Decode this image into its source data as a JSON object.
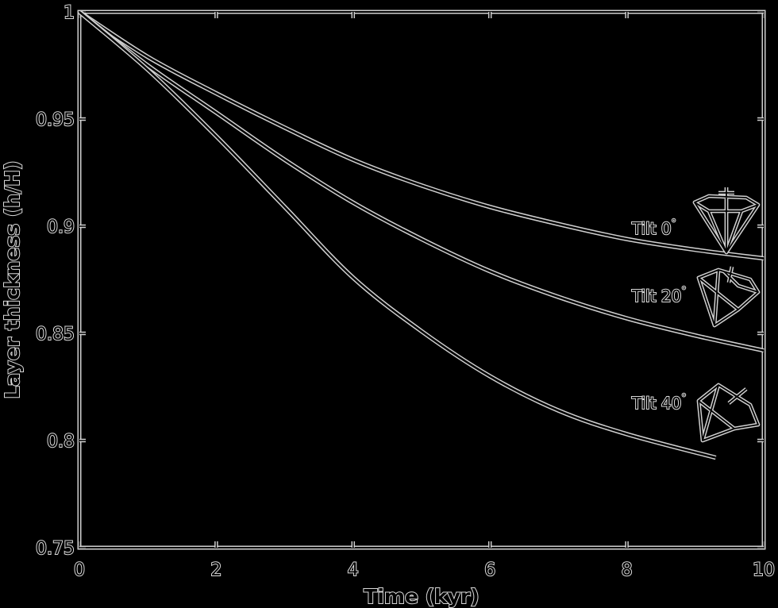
{
  "chart_data": {
    "type": "line",
    "title": "",
    "xlabel": "Time (kyr)",
    "ylabel": "Layer thickness (h/H)",
    "xlim": [
      0,
      10
    ],
    "ylim": [
      0.75,
      1.0
    ],
    "xticks": [
      0,
      2,
      4,
      6,
      8,
      10
    ],
    "xtick_labels": [
      "0",
      "2",
      "4",
      "6",
      "8",
      "10"
    ],
    "yticks": [
      0.75,
      0.8,
      0.85,
      0.9,
      0.95,
      1.0
    ],
    "ytick_labels": [
      "0.75",
      "0.8",
      "0.85",
      "0.9",
      "0.95",
      "1"
    ],
    "grid": false,
    "series": [
      {
        "name": "Tilt 0°",
        "label_text": "Tilt 0",
        "label_deg": "°",
        "x": [
          0,
          1,
          2,
          3,
          4,
          5,
          6,
          7,
          8,
          9,
          10
        ],
        "y": [
          1.0,
          0.979,
          0.962,
          0.946,
          0.931,
          0.919,
          0.909,
          0.901,
          0.894,
          0.889,
          0.885
        ]
      },
      {
        "name": "Tilt 20°",
        "label_text": "Tilt 20",
        "label_deg": "°",
        "x": [
          0,
          1,
          2,
          3,
          4,
          5,
          6,
          7,
          8,
          9,
          10
        ],
        "y": [
          1.0,
          0.975,
          0.953,
          0.931,
          0.911,
          0.894,
          0.879,
          0.867,
          0.857,
          0.849,
          0.842
        ]
      },
      {
        "name": "Tilt 40°",
        "label_text": "Tilt 40",
        "label_deg": "°",
        "x": [
          0,
          1,
          2,
          3,
          4,
          5,
          6,
          7,
          8,
          9.3
        ],
        "y": [
          1.0,
          0.973,
          0.942,
          0.909,
          0.876,
          0.851,
          0.83,
          0.814,
          0.803,
          0.792
        ]
      }
    ]
  }
}
